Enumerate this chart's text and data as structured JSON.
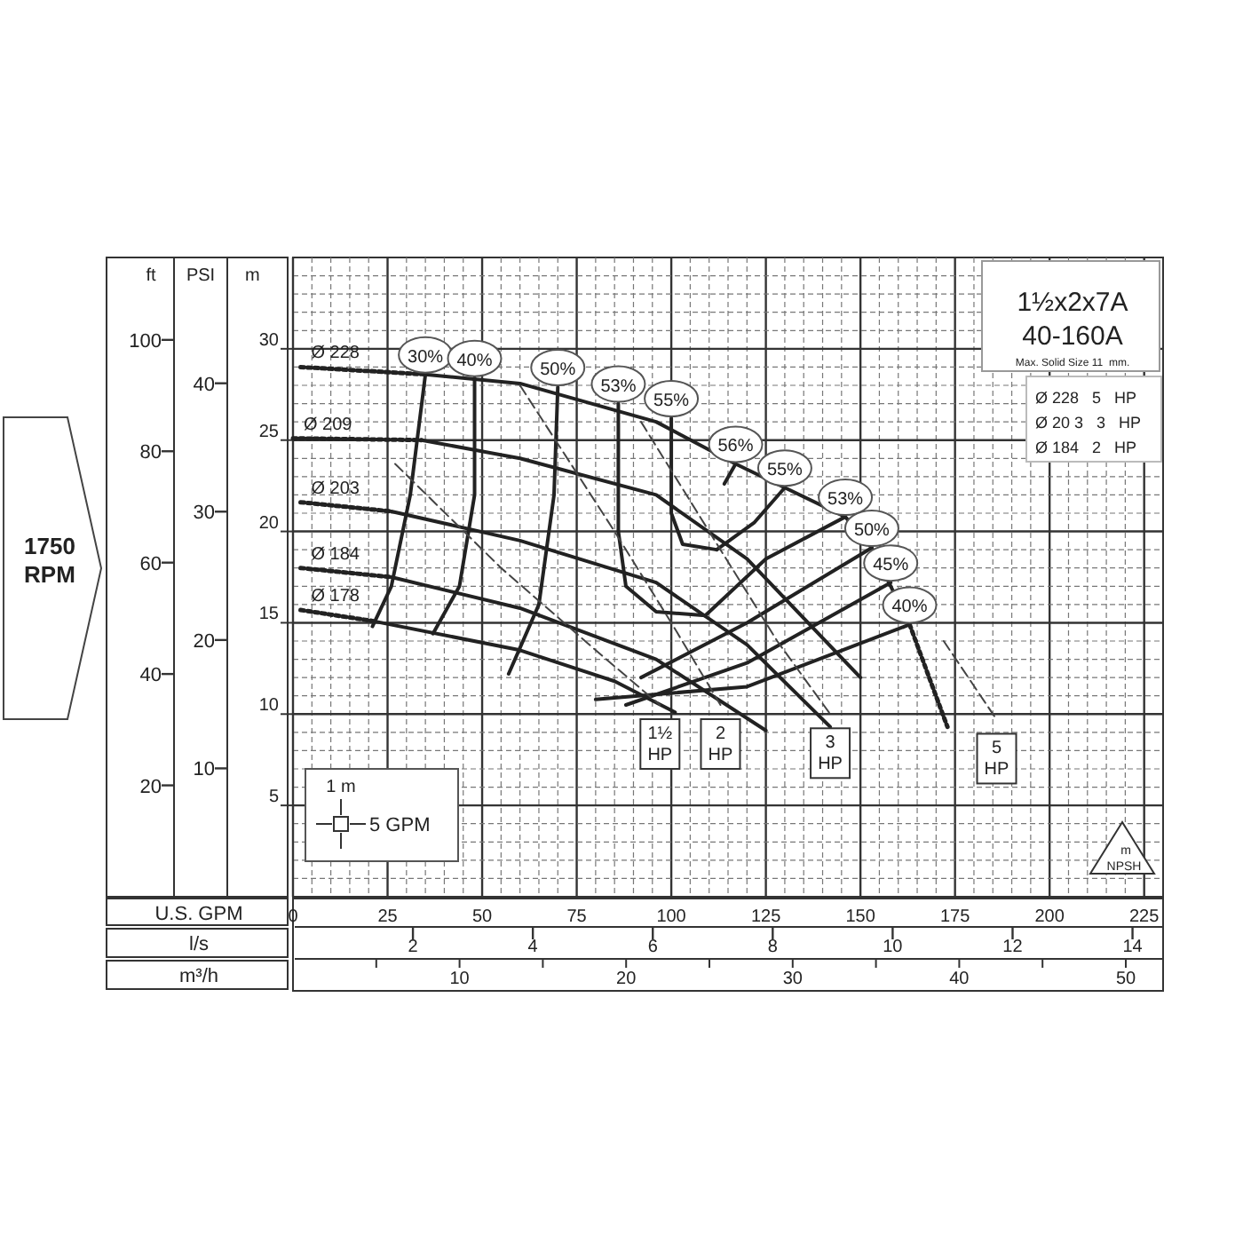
{
  "chart_data": {
    "type": "line",
    "title": "1½x2x7A",
    "subtitle": "40-160A",
    "xlabel": "U.S. GPM",
    "x2label": "l/s",
    "ylabel": "m",
    "y2label": "ft",
    "y3label": "PSI",
    "xlim": [
      0,
      230
    ],
    "ylim": [
      0,
      35
    ],
    "x2lim": [
      0,
      14.51
    ],
    "y2lim": [
      0,
      114.8
    ],
    "y3lim": [
      0,
      49.8
    ],
    "xticks": [
      0,
      {
        "value": 5,
        "label": null
      },
      {
        "value": 10,
        "label": null
      },
      {
        "value": 15,
        "label": null
      },
      {
        "value": 20,
        "label": null
      },
      25,
      {
        "value": 30,
        "label": null
      },
      {
        "value": 35,
        "label": null
      },
      {
        "value": 40,
        "label": null
      },
      {
        "value": 45,
        "label": null
      },
      50,
      {
        "value": 55,
        "label": null
      },
      {
        "value": 60,
        "label": null
      },
      {
        "value": 65,
        "label": null
      },
      {
        "value": 70,
        "label": null
      },
      75,
      {
        "value": 80,
        "label": null
      },
      {
        "value": 85,
        "label": null
      },
      {
        "value": 90,
        "label": null
      },
      {
        "value": 95,
        "label": null
      },
      100,
      {
        "value": 105,
        "label": null
      },
      {
        "value": 110,
        "label": null
      },
      {
        "value": 115,
        "label": null
      },
      {
        "value": 120,
        "label": null
      },
      125,
      {
        "value": 130,
        "label": null
      },
      {
        "value": 135,
        "label": null
      },
      {
        "value": 140,
        "label": null
      },
      {
        "value": 145,
        "label": null
      },
      150,
      {
        "value": 155,
        "label": null
      },
      {
        "value": 160,
        "label": null
      },
      {
        "value": 165,
        "label": null
      },
      {
        "value": 170,
        "label": null
      },
      175,
      {
        "value": 180,
        "label": null
      },
      {
        "value": 185,
        "label": null
      },
      {
        "value": 190,
        "label": null
      },
      {
        "value": 195,
        "label": null
      },
      200,
      {
        "value": 205,
        "label": null
      },
      {
        "value": 210,
        "label": null
      },
      {
        "value": 215,
        "label": null
      },
      {
        "value": 220,
        "label": null
      },
      225
    ],
    "yticks": [
      {
        "value": 1,
        "label": null
      },
      {
        "value": 2,
        "label": null
      },
      {
        "value": 3,
        "label": null
      },
      {
        "value": 4,
        "label": null
      },
      5,
      {
        "value": 6,
        "label": null
      },
      {
        "value": 7,
        "label": null
      },
      {
        "value": 8,
        "label": null
      },
      {
        "value": 9,
        "label": null
      },
      10,
      {
        "value": 11,
        "label": null
      },
      {
        "value": 12,
        "label": null
      },
      {
        "value": 13,
        "label": null
      },
      {
        "value": 14,
        "label": null
      },
      15,
      {
        "value": 16,
        "label": null
      },
      {
        "value": 17,
        "label": null
      },
      {
        "value": 18,
        "label": null
      },
      {
        "value": 19,
        "label": null
      },
      20,
      {
        "value": 21,
        "label": null
      },
      {
        "value": 22,
        "label": null
      },
      {
        "value": 23,
        "label": null
      },
      {
        "value": 24,
        "label": null
      },
      25,
      {
        "value": 26,
        "label": null
      },
      {
        "value": 27,
        "label": null
      },
      {
        "value": 28,
        "label": null
      },
      {
        "value": 29,
        "label": null
      },
      30,
      {
        "value": 31,
        "label": null
      },
      {
        "value": 32,
        "label": null
      },
      {
        "value": 33,
        "label": null
      },
      {
        "value": 34,
        "label": null
      }
    ],
    "x2ticks": [
      2,
      4,
      6,
      8,
      10,
      12,
      14
    ],
    "y2ticks": [
      20,
      40,
      60,
      80,
      100
    ],
    "y3ticks": [
      10,
      20,
      30,
      40
    ],
    "grid": true,
    "marker": "none",
    "series": [
      {
        "name": "Ø 228",
        "color": "#222222",
        "line_style": "dotted",
        "x": [
          2,
          35
        ],
        "values": [
          29,
          28.6
        ]
      },
      {
        "color": "#222222",
        "line_style": "solid",
        "x": [
          35,
          60,
          96,
          117,
          130,
          146,
          153,
          163
        ],
        "values": [
          28.6,
          28.1,
          26,
          23.7,
          22.4,
          20.8,
          19.1,
          14.9
        ]
      },
      {
        "color": "#222222",
        "line_style": "dotted",
        "x": [
          163,
          173
        ],
        "values": [
          14.9,
          9.3
        ]
      },
      {
        "name": "Ø 209",
        "color": "#222222",
        "line_style": "dotted",
        "x": [
          0,
          34
        ],
        "values": [
          25.1,
          25
        ]
      },
      {
        "color": "#222222",
        "line_style": "solid",
        "x": [
          34,
          60,
          96,
          120,
          150
        ],
        "values": [
          25,
          24,
          22,
          18.5,
          12
        ]
      },
      {
        "name": "Ø 203",
        "color": "#222222",
        "line_style": "dotted",
        "x": [
          2,
          26
        ],
        "values": [
          21.6,
          21.1
        ]
      },
      {
        "color": "#222222",
        "line_style": "solid",
        "x": [
          26,
          60,
          96,
          120,
          142
        ],
        "values": [
          21.1,
          19.5,
          17.2,
          13.8,
          9.3
        ]
      },
      {
        "name": "Ø 184",
        "color": "#222222",
        "line_style": "dotted",
        "x": [
          2,
          26
        ],
        "values": [
          18,
          17.5
        ]
      },
      {
        "color": "#222222",
        "line_style": "solid",
        "x": [
          26,
          60,
          96,
          125
        ],
        "values": [
          17.5,
          15.8,
          13,
          9.1
        ]
      },
      {
        "name": "Ø 178",
        "color": "#222222",
        "line_style": "dotted",
        "x": [
          2,
          21
        ],
        "values": [
          15.7,
          15.1
        ]
      },
      {
        "color": "#222222",
        "line_style": "solid",
        "x": [
          21,
          60,
          85,
          101
        ],
        "values": [
          15.1,
          13.5,
          11.8,
          10.1
        ]
      },
      {
        "name": "30%",
        "color": "#222222",
        "line_style": "solid",
        "x": [
          35,
          31,
          26,
          21
        ],
        "values": [
          28.6,
          22,
          17,
          14.8
        ]
      },
      {
        "name": "40%",
        "color": "#222222",
        "line_style": "solid",
        "x": [
          48,
          48,
          44,
          37
        ],
        "values": [
          28.4,
          22,
          17,
          14.4
        ]
      },
      {
        "name": "50%",
        "color": "#222222",
        "line_style": "solid",
        "x": [
          70,
          69,
          65,
          57
        ],
        "values": [
          27.9,
          22,
          16,
          12.2
        ]
      },
      {
        "name": "53%",
        "color": "#222222",
        "line_style": "solid",
        "x": [
          86,
          86,
          88,
          96,
          109
        ],
        "values": [
          27,
          20,
          17,
          15.6,
          15.4
        ]
      },
      {
        "name": "55%",
        "color": "#222222",
        "line_style": "solid",
        "x": [
          100,
          100,
          103,
          112
        ],
        "values": [
          26.2,
          21,
          19.3,
          19
        ]
      },
      {
        "name": "56%",
        "color": "#222222",
        "line_style": "solid",
        "x": [
          114,
          117
        ],
        "values": [
          22.6,
          23.7
        ]
      },
      {
        "name": "55%",
        "color": "#222222",
        "line_style": "solid",
        "x": [
          112,
          122,
          130
        ],
        "values": [
          19,
          20.5,
          22.4
        ]
      },
      {
        "name": "53%",
        "color": "#222222",
        "line_style": "solid",
        "x": [
          109,
          125,
          146
        ],
        "values": [
          15.4,
          18.5,
          20.8
        ]
      },
      {
        "name": "50%",
        "color": "#222222",
        "line_style": "solid",
        "x": [
          92,
          120,
          153
        ],
        "values": [
          12,
          15,
          19.1
        ]
      },
      {
        "name": "45%",
        "color": "#222222",
        "line_style": "solid",
        "x": [
          88,
          120,
          158
        ],
        "values": [
          10.5,
          12.8,
          17.2
        ]
      },
      {
        "name": "40%",
        "color": "#222222",
        "line_style": "solid",
        "x": [
          80,
          120,
          163
        ],
        "values": [
          10.8,
          11.5,
          14.9
        ]
      },
      {
        "name": "1½ HP",
        "color": "#444444",
        "line_style": "dashed",
        "x": [
          27,
          55,
          80,
          97
        ],
        "values": [
          23.7,
          18,
          13.5,
          10.5
        ]
      },
      {
        "name": "2 HP",
        "color": "#444444",
        "line_style": "dashed",
        "x": [
          60,
          85,
          100,
          113
        ],
        "values": [
          28,
          20,
          15,
          10.5
        ]
      },
      {
        "name": "3 HP",
        "color": "#444444",
        "line_style": "dashed",
        "x": [
          92,
          110,
          128,
          142
        ],
        "values": [
          26,
          20,
          14,
          10
        ]
      },
      {
        "name": "5 HP",
        "color": "#444444",
        "line_style": "dashed",
        "x": [
          172,
          186
        ],
        "values": [
          14,
          9.7
        ]
      }
    ],
    "annotations": [
      "1750 RPM",
      "Max. Solid Size 11  mm.",
      "Ø 228   5   HP",
      "Ø 20 3   3   HP",
      "Ø 184   2   HP",
      "1 m",
      "5 GPM",
      "m",
      "NPSH",
      "m³/h",
      "10",
      "20",
      "30",
      "40",
      "50"
    ]
  }
}
